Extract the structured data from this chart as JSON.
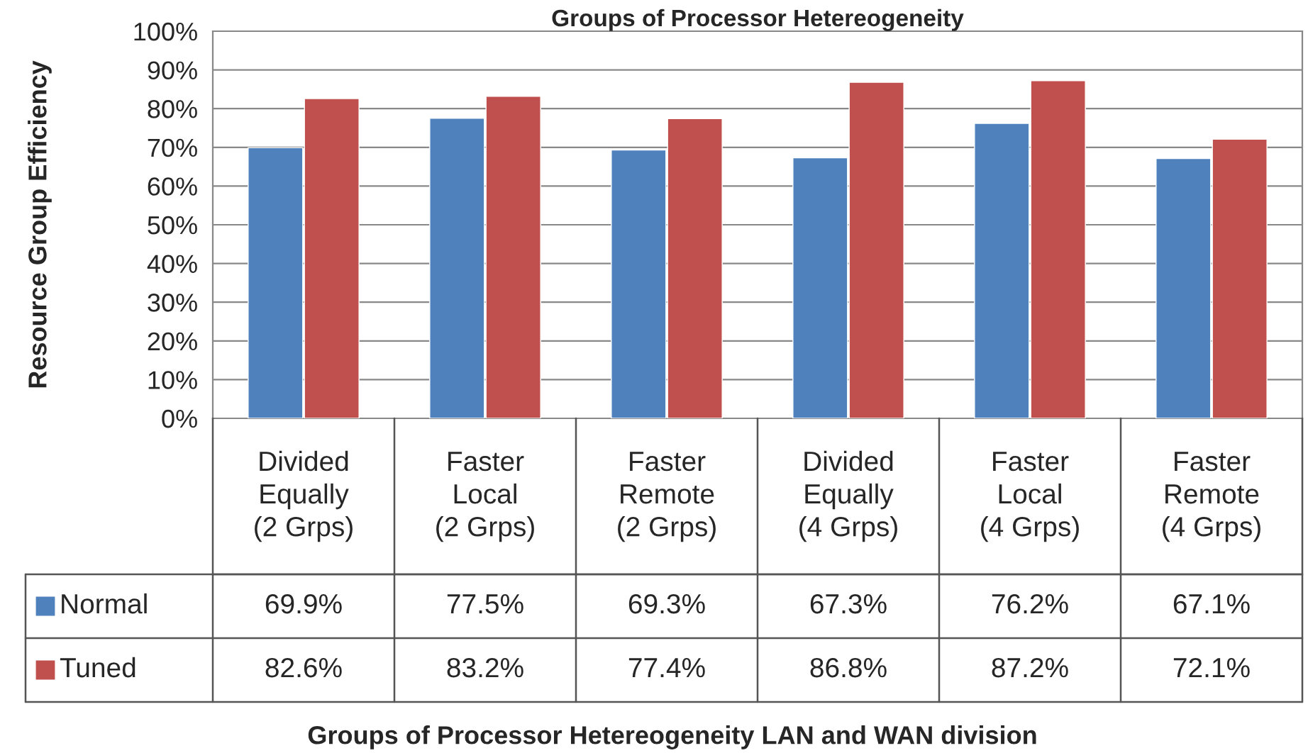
{
  "chart_data": {
    "type": "bar",
    "title": "Groups of Processor Hetereogeneity",
    "annotations": [
      "Groups of Processor Hetereogeneity LAN and WAN division"
    ],
    "ylabel": "Resource Group Efficiency",
    "categories": [
      "Divided\nEqually\n(2 Grps)",
      "Faster\nLocal\n(2 Grps)",
      "Faster\nRemote\n(2 Grps)",
      "Divided\nEqually\n(4 Grps)",
      "Faster\nLocal\n(4 Grps)",
      "Faster\nRemote\n(4 Grps)"
    ],
    "series": [
      {
        "name": "Normal",
        "color": "#4f81bd",
        "values": [
          69.9,
          77.5,
          69.3,
          67.3,
          76.2,
          67.1
        ],
        "value_labels": [
          "69.9%",
          "77.5%",
          "69.3%",
          "67.3%",
          "76.2%",
          "67.1%"
        ]
      },
      {
        "name": "Tuned",
        "color": "#c0504d",
        "values": [
          82.6,
          83.2,
          77.4,
          86.8,
          87.2,
          72.1
        ],
        "value_labels": [
          "82.6%",
          "83.2%",
          "77.4%",
          "86.8%",
          "87.2%",
          "72.1%"
        ]
      }
    ],
    "ylim": [
      0,
      100
    ],
    "yticks": [
      {
        "value": 0,
        "label": "0%"
      },
      {
        "value": 10,
        "label": "10%"
      },
      {
        "value": 20,
        "label": "20%"
      },
      {
        "value": 30,
        "label": "30%"
      },
      {
        "value": 40,
        "label": "40%"
      },
      {
        "value": 50,
        "label": "50%"
      },
      {
        "value": 60,
        "label": "60%"
      },
      {
        "value": 70,
        "label": "70%"
      },
      {
        "value": 80,
        "label": "80%"
      },
      {
        "value": 90,
        "label": "90%"
      },
      {
        "value": 100,
        "label": "100%"
      }
    ],
    "grid": "y",
    "legend": "bottom"
  }
}
